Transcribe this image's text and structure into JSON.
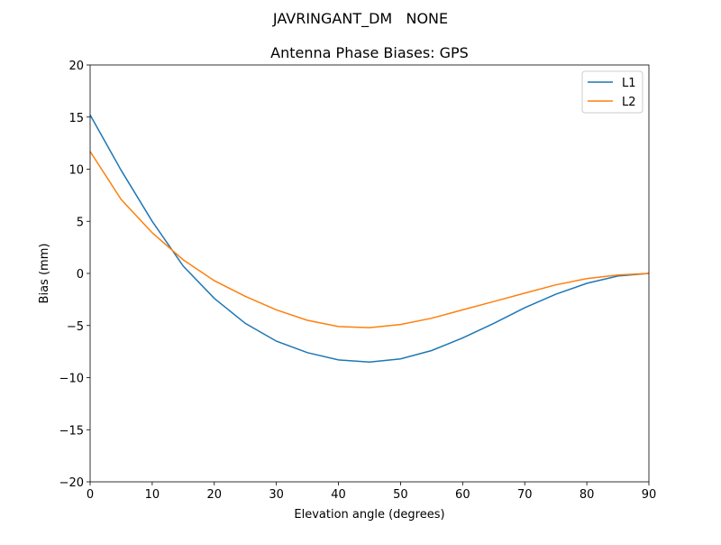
{
  "suptitle": "JAVRINGANT_DM   NONE",
  "chart_data": {
    "type": "line",
    "title": "Antenna Phase Biases: GPS",
    "xlabel": "Elevation angle (degrees)",
    "ylabel": "Bias (mm)",
    "xlim": [
      0,
      90
    ],
    "ylim": [
      -20,
      20
    ],
    "xticks": [
      "0",
      "10",
      "20",
      "30",
      "40",
      "50",
      "60",
      "70",
      "80",
      "90"
    ],
    "yticks": [
      "20",
      "15",
      "10",
      "5",
      "0",
      "−5",
      "−10",
      "−15",
      "−20"
    ],
    "grid": false,
    "legend": "top-right",
    "x": [
      0,
      5,
      10,
      15,
      20,
      25,
      30,
      35,
      40,
      45,
      50,
      55,
      60,
      65,
      70,
      75,
      80,
      85,
      90
    ],
    "series": [
      {
        "name": "L1",
        "color": "#1f77b4",
        "values": [
          15.2,
          9.9,
          5.0,
          0.7,
          -2.4,
          -4.8,
          -6.5,
          -7.6,
          -8.3,
          -8.5,
          -8.2,
          -7.4,
          -6.2,
          -4.8,
          -3.3,
          -2.0,
          -0.95,
          -0.25,
          0
        ]
      },
      {
        "name": "L2",
        "color": "#ff7f0e",
        "values": [
          11.7,
          7.1,
          3.9,
          1.3,
          -0.7,
          -2.2,
          -3.5,
          -4.5,
          -5.1,
          -5.2,
          -4.9,
          -4.3,
          -3.5,
          -2.7,
          -1.9,
          -1.1,
          -0.5,
          -0.15,
          0
        ]
      }
    ]
  }
}
